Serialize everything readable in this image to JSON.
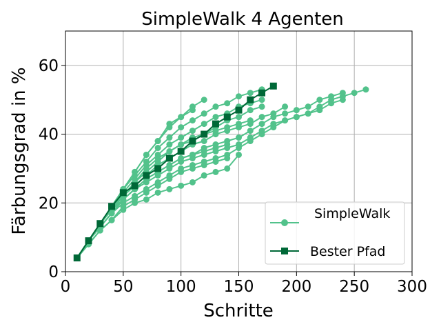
{
  "chart_data": {
    "type": "line",
    "title": "SimpleWalk  4 Agenten",
    "xlabel": "Schritte",
    "ylabel": "Färbungsgrad in %",
    "xlim": [
      0,
      300
    ],
    "ylim": [
      0,
      70
    ],
    "xticks": [
      0,
      50,
      100,
      150,
      200,
      250,
      300
    ],
    "yticks": [
      0,
      20,
      40,
      60
    ],
    "grid": true,
    "legend": {
      "placement": "lower-right",
      "entries": [
        "SimpleWalk",
        "Bester Pfad"
      ]
    },
    "colors": {
      "simplewalk": "#52c28b",
      "best": "#006837",
      "grid": "#b0b0b0"
    },
    "series": [
      {
        "name": "SimpleWalk",
        "role": "simplewalk",
        "x": [
          10,
          20,
          30,
          40,
          50,
          60,
          70,
          80,
          90,
          100,
          110,
          120,
          130,
          140,
          150
        ],
        "y": [
          4,
          8,
          12,
          15,
          18,
          20,
          21,
          23,
          24,
          25,
          26,
          28,
          29,
          30,
          34
        ]
      },
      {
        "name": "SimpleWalk",
        "role": "simplewalk",
        "x": [
          10,
          20,
          30,
          40,
          50,
          60,
          70,
          80,
          90,
          100,
          110,
          120,
          130,
          140
        ],
        "y": [
          4,
          8,
          12,
          15,
          19,
          21,
          23,
          25,
          27,
          29,
          30,
          31,
          32,
          33
        ]
      },
      {
        "name": "SimpleWalk",
        "role": "simplewalk",
        "x": [
          10,
          20,
          30,
          40,
          50,
          60,
          70,
          80,
          90,
          100,
          110,
          120,
          130,
          140,
          150,
          160,
          170,
          180,
          190,
          200,
          210,
          220,
          230,
          240,
          250,
          260
        ],
        "y": [
          4,
          9,
          13,
          17,
          20,
          22,
          24,
          26,
          28,
          30,
          31,
          32,
          33,
          34,
          36,
          38,
          40,
          42,
          44,
          45,
          46,
          48,
          50,
          51,
          52,
          53
        ]
      },
      {
        "name": "SimpleWalk",
        "role": "simplewalk",
        "x": [
          10,
          20,
          30,
          40,
          50,
          60,
          70,
          80,
          90,
          100,
          110,
          120,
          130,
          140,
          150,
          160,
          170,
          180,
          190,
          200,
          210,
          220,
          230,
          240
        ],
        "y": [
          4,
          9,
          13,
          17,
          21,
          24,
          26,
          28,
          30,
          32,
          33,
          34,
          35,
          36,
          37,
          39,
          41,
          43,
          44,
          45,
          46,
          47,
          49,
          50
        ]
      },
      {
        "name": "SimpleWalk",
        "role": "simplewalk",
        "x": [
          10,
          20,
          30,
          40,
          50,
          60,
          70,
          80,
          90,
          100,
          110,
          120,
          130,
          140,
          150,
          160,
          170,
          180,
          190,
          200,
          210,
          220,
          230,
          240
        ],
        "y": [
          4,
          9,
          14,
          18,
          21,
          24,
          27,
          29,
          31,
          33,
          34,
          36,
          37,
          38,
          39,
          41,
          43,
          45,
          46,
          47,
          48,
          50,
          51,
          52
        ]
      },
      {
        "name": "SimpleWalk",
        "role": "simplewalk",
        "x": [
          10,
          20,
          30,
          40,
          50,
          60,
          70,
          80,
          90,
          100,
          110,
          120,
          130,
          140,
          150,
          160,
          170,
          180,
          190
        ],
        "y": [
          4,
          9,
          14,
          18,
          22,
          25,
          28,
          31,
          33,
          35,
          37,
          38,
          40,
          41,
          42,
          43,
          45,
          46,
          48
        ]
      },
      {
        "name": "SimpleWalk",
        "role": "simplewalk",
        "x": [
          10,
          20,
          30,
          40,
          50,
          60,
          70,
          80,
          90,
          100,
          110,
          120,
          130,
          140,
          150,
          160,
          170
        ],
        "y": [
          4,
          9,
          14,
          18,
          22,
          26,
          29,
          32,
          35,
          37,
          39,
          40,
          42,
          44,
          45,
          47,
          48
        ]
      },
      {
        "name": "SimpleWalk",
        "role": "simplewalk",
        "x": [
          10,
          20,
          30,
          40,
          50,
          60,
          70,
          80,
          90,
          100,
          110,
          120,
          130,
          140,
          150,
          160,
          170
        ],
        "y": [
          4,
          9,
          14,
          18,
          23,
          27,
          31,
          34,
          37,
          39,
          41,
          43,
          45,
          46,
          48,
          49,
          50
        ]
      },
      {
        "name": "SimpleWalk",
        "role": "simplewalk",
        "x": [
          10,
          20,
          30,
          40,
          50,
          60,
          70,
          80,
          90,
          100,
          110,
          120,
          130,
          140,
          150,
          160,
          170
        ],
        "y": [
          4,
          9,
          14,
          19,
          24,
          28,
          32,
          36,
          39,
          42,
          44,
          46,
          48,
          49,
          51,
          52,
          53
        ]
      },
      {
        "name": "SimpleWalk",
        "role": "simplewalk",
        "x": [
          10,
          20,
          30,
          40,
          50,
          60,
          70,
          80,
          90,
          100,
          110,
          120
        ],
        "y": [
          4,
          9,
          14,
          19,
          24,
          29,
          34,
          38,
          42,
          45,
          48,
          50
        ]
      },
      {
        "name": "SimpleWalk",
        "role": "simplewalk",
        "x": [
          10,
          20,
          30,
          40,
          50,
          60,
          70,
          80,
          90,
          100,
          110
        ],
        "y": [
          4,
          9,
          14,
          19,
          24,
          29,
          34,
          38,
          43,
          45,
          47
        ]
      },
      {
        "name": "SimpleWalk",
        "role": "simplewalk",
        "x": [
          10,
          20,
          30,
          40,
          50,
          60,
          70,
          80,
          90,
          100,
          110,
          120,
          130,
          140,
          150,
          160
        ],
        "y": [
          4,
          9,
          14,
          18,
          22,
          26,
          30,
          33,
          35,
          37,
          38,
          40,
          41,
          42,
          43,
          44
        ]
      },
      {
        "name": "SimpleWalk",
        "role": "simplewalk",
        "x": [
          10,
          20,
          30,
          40,
          50,
          60,
          70,
          80,
          90,
          100,
          110,
          120,
          130,
          140
        ],
        "y": [
          4,
          9,
          13,
          17,
          21,
          24,
          27,
          29,
          31,
          33,
          34,
          35,
          36,
          37
        ]
      },
      {
        "name": "Bester Pfad",
        "role": "best",
        "x": [
          10,
          20,
          30,
          40,
          50,
          60,
          70,
          80,
          90,
          100,
          110,
          120,
          130,
          140,
          150,
          160,
          170,
          180
        ],
        "y": [
          4,
          9,
          14,
          19,
          23,
          25,
          28,
          30,
          33,
          35,
          38,
          40,
          43,
          45,
          47,
          50,
          52,
          54
        ]
      }
    ]
  }
}
